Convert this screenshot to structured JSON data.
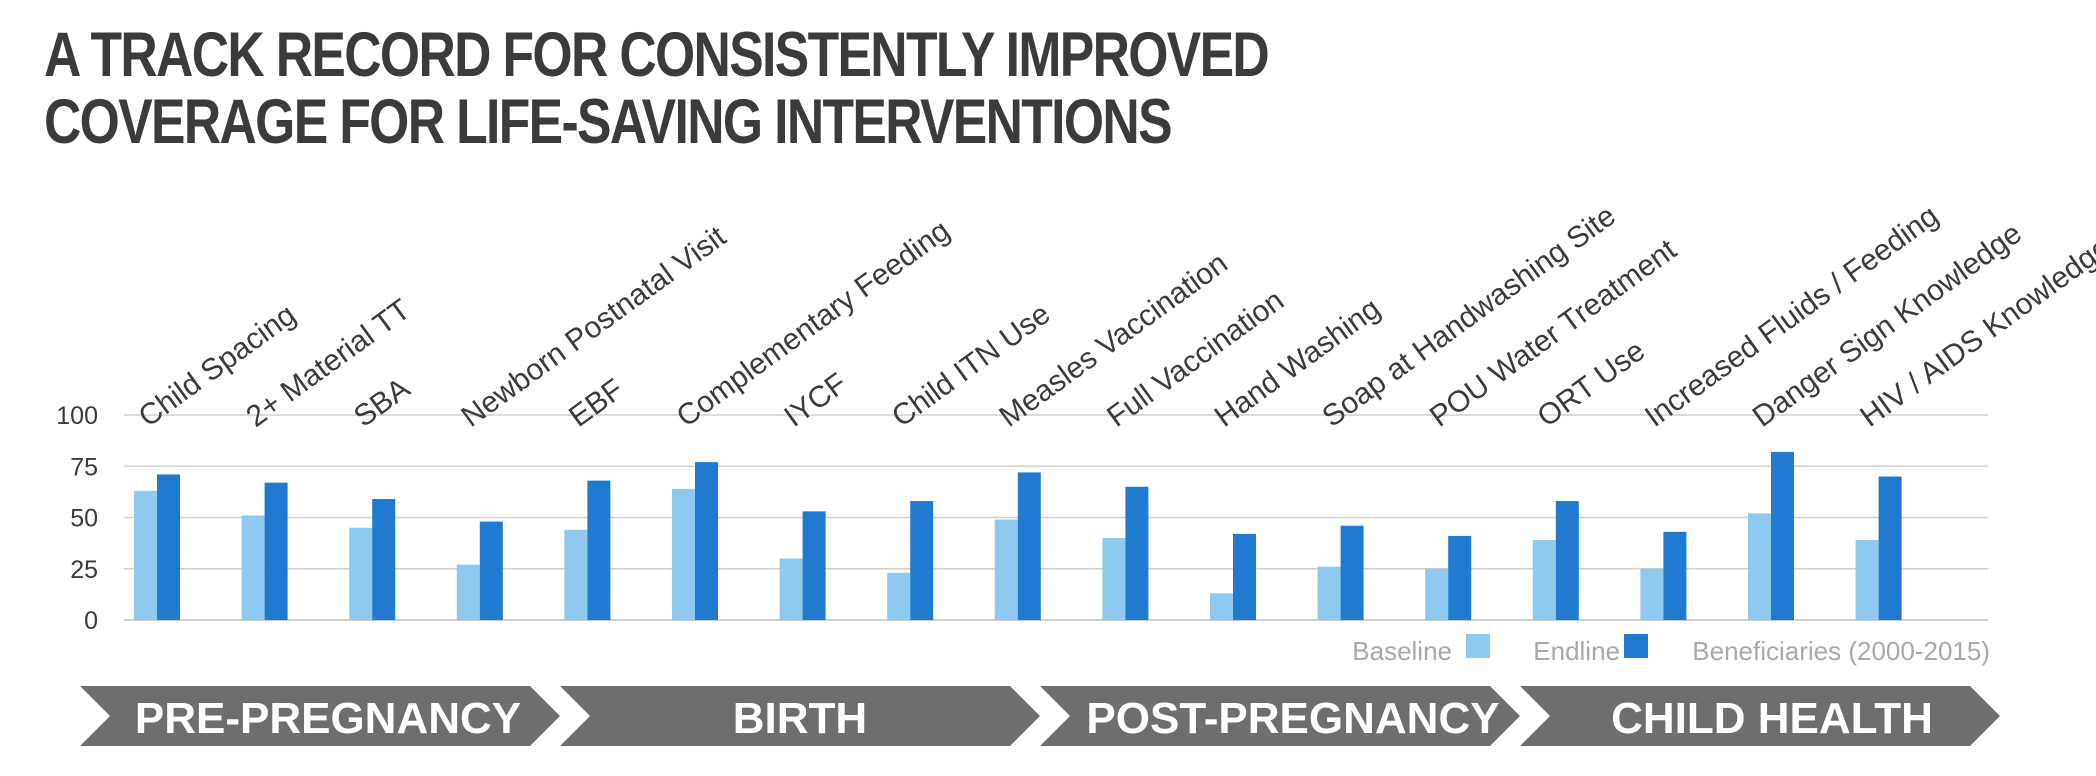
{
  "title_lines": [
    "A TRACK RECORD FOR CONSISTENTLY IMPROVED",
    "COVERAGE FOR LIFE-SAVING INTERVENTIONS"
  ],
  "colors": {
    "baseline": "#8ec9f2",
    "endline": "#1f7ad0",
    "arrow": "#6e6e6e",
    "grid": "#cfcfcf",
    "title": "#3b3b3b",
    "legend_text": "#a9a9a9"
  },
  "legend": {
    "baseline": "Baseline",
    "endline": "Endline",
    "beneficiaries": "Beneficiaries (2000-2015)"
  },
  "phases": [
    "PRE-PREGNANCY",
    "BIRTH",
    "POST-PREGNANCY",
    "CHILD HEALTH"
  ],
  "chart_data": {
    "type": "bar",
    "categories": [
      "Child Spacing",
      "2+ Material TT",
      "SBA",
      "Newborn Postnatal Visit",
      "EBF",
      "Complementary Feeding",
      "IYCF",
      "Child ITN Use",
      "Measles Vaccination",
      "Full Vaccination",
      "Hand Washing",
      "Soap at Handwashing Site",
      "POU Water Treatment",
      "ORT Use",
      "Increased Fluids / Feeding",
      "Danger Sign Knowledge",
      "HIV / AIDS Knowledge"
    ],
    "series": [
      {
        "name": "Baseline",
        "values": [
          63,
          51,
          45,
          27,
          44,
          64,
          30,
          23,
          49,
          40,
          13,
          26,
          25,
          39,
          25,
          52,
          39
        ]
      },
      {
        "name": "Endline",
        "values": [
          71,
          67,
          59,
          48,
          68,
          77,
          53,
          58,
          72,
          65,
          42,
          46,
          41,
          58,
          43,
          82,
          70
        ]
      }
    ],
    "yticks": [
      0,
      25,
      50,
      75,
      100
    ],
    "ylim": [
      0,
      100
    ],
    "grid": true,
    "legend_position": "bottom-right"
  }
}
